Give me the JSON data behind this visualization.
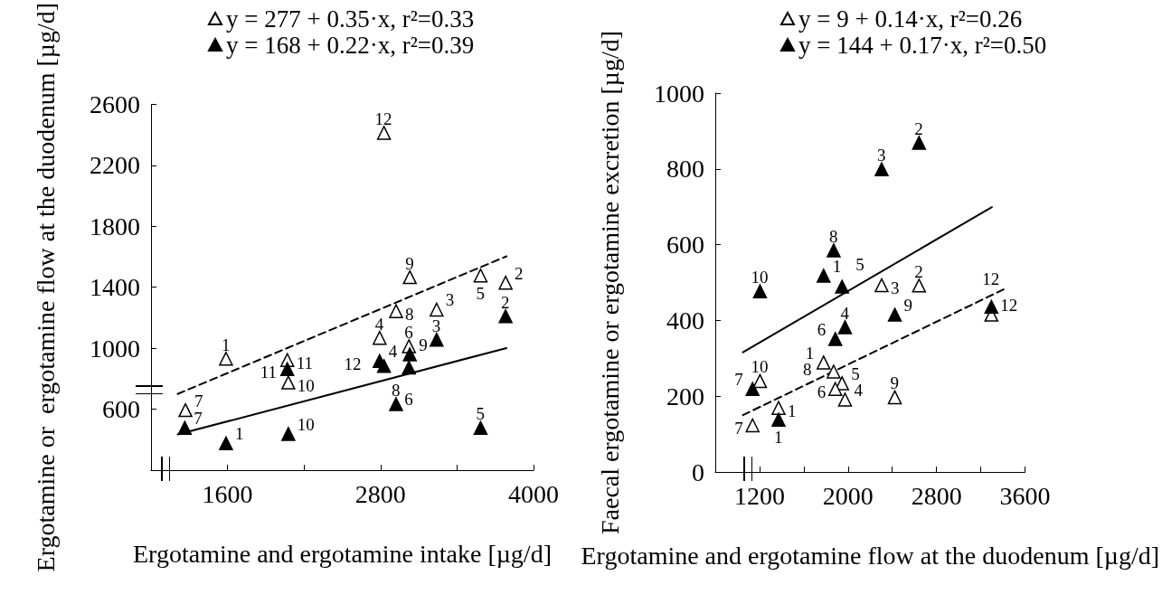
{
  "chart_data": [
    {
      "type": "scatter",
      "xlabel": "Ergotamine and ergotamine intake [µg/d]",
      "ylabel": "Ergotamine or  ergotamine flow at the duodenum [µg/d]",
      "xlim": [
        1000,
        4000
      ],
      "xticks": [
        1600,
        {
          "value": 2200,
          "label": null
        },
        2800,
        {
          "value": 3400,
          "label": null
        },
        4000
      ],
      "ylim": [
        200,
        2600
      ],
      "yticks": [
        600,
        1000,
        1400,
        1800,
        2200,
        2600
      ],
      "legend": "top",
      "grid": false,
      "marker": "triangle",
      "series": [
        {
          "name": "y = 277 + 0.35·x, r²=0.33",
          "color": "#ffffff",
          "x": [
            1270,
            1588,
            2069,
            2077,
            2793,
            2827,
            2922,
            3030,
            3023,
            3240,
            3585,
            3781
          ],
          "values": [
            594,
            931,
            922,
            775,
            1068,
            2413,
            1243,
            1466,
            1013,
            1253,
            1477,
            1430
          ]
        },
        {
          "name": "y = 168 + 0.22·x, r²=0.39",
          "color": "#000000",
          "x": [
            1265,
            1588,
            2069,
            2077,
            2793,
            2827,
            2922,
            3030,
            3023,
            3240,
            3585,
            3781
          ],
          "values": [
            477,
            376,
            863,
            438,
            916,
            883,
            633,
            959,
            873,
            1056,
            477,
            1210
          ]
        },
        {
          "type": "line",
          "color": "#000000",
          "line_style": "dashed",
          "marker": "none",
          "x": [
            1209,
            3788
          ],
          "values": [
            700,
            1603
          ]
        },
        {
          "type": "line",
          "color": "#000000",
          "line_style": "solid",
          "marker": "none",
          "x": [
            1209,
            3788
          ],
          "values": [
            434,
            1001
          ]
        }
      ],
      "annotations": [
        {
          "text": "7",
          "x": 1270,
          "y": 594
        },
        {
          "text": "1",
          "x": 1588,
          "y": 931
        },
        {
          "text": "11",
          "x": 2069,
          "y": 922
        },
        {
          "text": "10",
          "x": 2077,
          "y": 775
        },
        {
          "text": "4",
          "x": 2793,
          "y": 1068
        },
        {
          "text": "12",
          "x": 2827,
          "y": 2413
        },
        {
          "text": "8",
          "x": 2922,
          "y": 1243
        },
        {
          "text": "9",
          "x": 3030,
          "y": 1466
        },
        {
          "text": "6",
          "x": 3023,
          "y": 1013
        },
        {
          "text": "3",
          "x": 3240,
          "y": 1253
        },
        {
          "text": "5",
          "x": 3585,
          "y": 1477
        },
        {
          "text": "2",
          "x": 3781,
          "y": 1430
        },
        {
          "text": "7",
          "x": 1265,
          "y": 477
        },
        {
          "text": "1",
          "x": 1588,
          "y": 376
        },
        {
          "text": "11",
          "x": 2069,
          "y": 863
        },
        {
          "text": "10",
          "x": 2077,
          "y": 438
        },
        {
          "text": "4",
          "x": 2793,
          "y": 916
        },
        {
          "text": "12",
          "x": 2827,
          "y": 883
        },
        {
          "text": "8",
          "x": 2922,
          "y": 633
        },
        {
          "text": "9",
          "x": 3030,
          "y": 959
        },
        {
          "text": "6",
          "x": 3023,
          "y": 873
        },
        {
          "text": "3",
          "x": 3240,
          "y": 1056
        },
        {
          "text": "5",
          "x": 3585,
          "y": 477
        },
        {
          "text": "2",
          "x": 3781,
          "y": 1210
        }
      ]
    },
    {
      "type": "scatter",
      "xlabel": "Ergotamine and ergotamine flow at the duodenum [µg/d]",
      "ylabel": "Faecal ergotamine or ergotamine excretion [µg/d]",
      "xlim": [
        800,
        3600
      ],
      "xticks": [
        1200,
        {
          "value": 1600,
          "label": null
        },
        2000,
        {
          "value": 2400,
          "label": null
        },
        2800,
        {
          "value": 3200,
          "label": null
        },
        3600
      ],
      "ylim": [
        0,
        1000
      ],
      "yticks": [
        0,
        200,
        400,
        600,
        800,
        1000
      ],
      "legend": "top",
      "grid": false,
      "marker": "triangle",
      "series": [
        {
          "name": "y = 9 + 0.14·x, r²=0.26",
          "color": "#ffffff",
          "x": [
            1137,
            1372,
            1204,
            1779,
            1870,
            1946,
            1885,
            1973,
            2423,
            2304,
            2642,
            3296
          ],
          "values": [
            123,
            169,
            240,
            289,
            265,
            234,
            219,
            191,
            197,
            493,
            492,
            415
          ]
        },
        {
          "name": "y = 144 + 0.17·x, r²=0.50",
          "color": "#000000",
          "x": [
            1137,
            1372,
            1204,
            1779,
            1870,
            1946,
            1885,
            1973,
            2423,
            2304,
            2642,
            3296
          ],
          "values": [
            219,
            138,
            477,
            518,
            585,
            489,
            351,
            382,
            415,
            799,
            869,
            436
          ]
        },
        {
          "type": "line",
          "color": "#000000",
          "line_style": "solid",
          "marker": "none",
          "x": [
            1050,
            3300
          ],
          "values": [
            316,
            699
          ]
        },
        {
          "type": "line",
          "color": "#000000",
          "line_style": "dashed",
          "marker": "none",
          "x": [
            1050,
            3428
          ],
          "values": [
            150,
            485
          ]
        }
      ],
      "annotations": [
        {
          "text": "7",
          "x": 1137,
          "y": 123
        },
        {
          "text": "1",
          "x": 1372,
          "y": 169
        },
        {
          "text": "10",
          "x": 1204,
          "y": 240
        },
        {
          "text": "1",
          "x": 1779,
          "y": 289
        },
        {
          "text": "8",
          "x": 1870,
          "y": 265
        },
        {
          "text": "5",
          "x": 1946,
          "y": 234
        },
        {
          "text": "6",
          "x": 1885,
          "y": 219
        },
        {
          "text": "4",
          "x": 1973,
          "y": 191
        },
        {
          "text": "9",
          "x": 2423,
          "y": 197
        },
        {
          "text": "3",
          "x": 2304,
          "y": 493
        },
        {
          "text": "2",
          "x": 2642,
          "y": 492
        },
        {
          "text": "12",
          "x": 3296,
          "y": 415
        },
        {
          "text": "7",
          "x": 1137,
          "y": 219
        },
        {
          "text": "1",
          "x": 1372,
          "y": 138
        },
        {
          "text": "10",
          "x": 1204,
          "y": 477
        },
        {
          "text": "1",
          "x": 1779,
          "y": 518
        },
        {
          "text": "8",
          "x": 1870,
          "y": 585
        },
        {
          "text": "5",
          "x": 1946,
          "y": 489
        },
        {
          "text": "6",
          "x": 1885,
          "y": 351
        },
        {
          "text": "4",
          "x": 1973,
          "y": 382
        },
        {
          "text": "9",
          "x": 2423,
          "y": 415
        },
        {
          "text": "3",
          "x": 2304,
          "y": 799
        },
        {
          "text": "2",
          "x": 2642,
          "y": 869
        },
        {
          "text": "12",
          "x": 3296,
          "y": 436
        }
      ]
    }
  ]
}
